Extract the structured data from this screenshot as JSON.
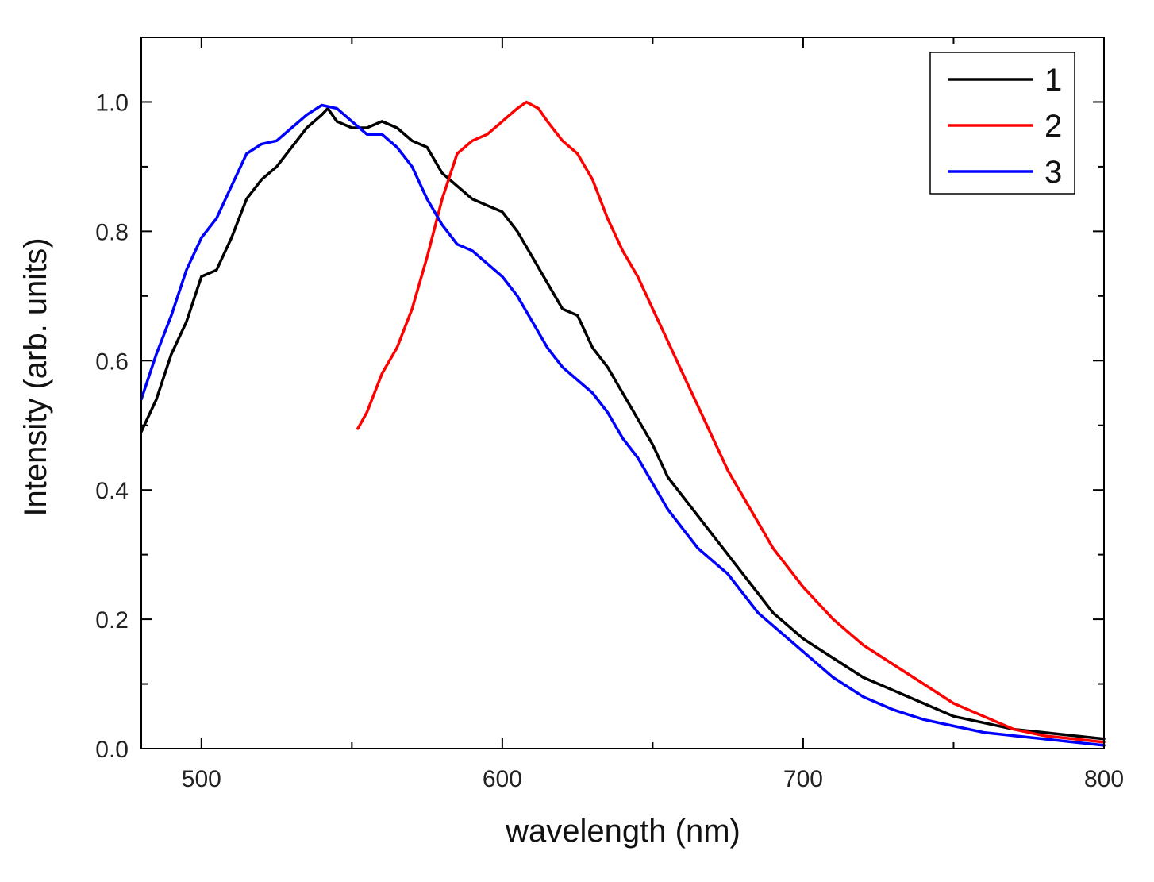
{
  "chart_data": {
    "type": "line",
    "xlabel": "wavelength (nm)",
    "ylabel": "Intensity (arb. units)",
    "xlim": [
      480,
      800
    ],
    "ylim": [
      0,
      1.1
    ],
    "x_ticks": [
      500,
      600,
      700,
      800
    ],
    "x_tick_labels": [
      "500",
      "600",
      "700",
      "800"
    ],
    "y_ticks": [
      0,
      0.2,
      0.4,
      0.6,
      0.8,
      1.0
    ],
    "y_tick_labels": [
      "0.0",
      "0.2",
      "0.4",
      "0.6",
      "0.8",
      "1.0"
    ],
    "grid": false,
    "legend_position": "top-right",
    "series": [
      {
        "name": "1",
        "color": "#000000",
        "x": [
          480,
          485,
          490,
          495,
          500,
          505,
          510,
          515,
          520,
          525,
          530,
          535,
          540,
          542,
          545,
          550,
          555,
          560,
          565,
          570,
          575,
          580,
          585,
          590,
          595,
          600,
          605,
          610,
          615,
          620,
          625,
          630,
          635,
          640,
          645,
          650,
          655,
          660,
          665,
          670,
          675,
          680,
          685,
          690,
          695,
          700,
          710,
          720,
          730,
          740,
          750,
          760,
          770,
          780,
          790,
          800
        ],
        "y": [
          0.49,
          0.54,
          0.61,
          0.66,
          0.73,
          0.74,
          0.79,
          0.85,
          0.88,
          0.9,
          0.93,
          0.96,
          0.98,
          0.99,
          0.97,
          0.96,
          0.96,
          0.97,
          0.96,
          0.94,
          0.93,
          0.89,
          0.87,
          0.85,
          0.84,
          0.83,
          0.8,
          0.76,
          0.72,
          0.68,
          0.67,
          0.62,
          0.59,
          0.55,
          0.51,
          0.47,
          0.42,
          0.39,
          0.36,
          0.33,
          0.3,
          0.27,
          0.24,
          0.21,
          0.19,
          0.17,
          0.14,
          0.11,
          0.09,
          0.07,
          0.05,
          0.04,
          0.03,
          0.025,
          0.02,
          0.015
        ]
      },
      {
        "name": "2",
        "color": "#ff0000",
        "x": [
          552,
          555,
          560,
          565,
          570,
          575,
          580,
          585,
          590,
          595,
          600,
          605,
          608,
          612,
          615,
          620,
          625,
          630,
          635,
          640,
          645,
          650,
          655,
          660,
          665,
          670,
          675,
          680,
          685,
          690,
          695,
          700,
          710,
          720,
          730,
          740,
          750,
          760,
          770,
          780,
          790,
          800
        ],
        "y": [
          0.495,
          0.52,
          0.58,
          0.62,
          0.68,
          0.76,
          0.85,
          0.92,
          0.94,
          0.95,
          0.97,
          0.99,
          1.0,
          0.99,
          0.97,
          0.94,
          0.92,
          0.88,
          0.82,
          0.77,
          0.73,
          0.68,
          0.63,
          0.58,
          0.53,
          0.48,
          0.43,
          0.39,
          0.35,
          0.31,
          0.28,
          0.25,
          0.2,
          0.16,
          0.13,
          0.1,
          0.07,
          0.05,
          0.03,
          0.02,
          0.015,
          0.01
        ]
      },
      {
        "name": "3",
        "color": "#0000ff",
        "x": [
          480,
          485,
          490,
          495,
          500,
          505,
          510,
          515,
          520,
          525,
          530,
          535,
          540,
          545,
          550,
          555,
          560,
          565,
          570,
          575,
          580,
          585,
          590,
          595,
          600,
          605,
          610,
          615,
          620,
          625,
          630,
          635,
          640,
          645,
          650,
          655,
          660,
          665,
          670,
          675,
          680,
          685,
          690,
          695,
          700,
          710,
          720,
          730,
          740,
          750,
          760,
          770,
          780,
          790,
          800
        ],
        "y": [
          0.54,
          0.61,
          0.67,
          0.74,
          0.79,
          0.82,
          0.87,
          0.92,
          0.935,
          0.94,
          0.96,
          0.98,
          0.995,
          0.99,
          0.97,
          0.95,
          0.95,
          0.93,
          0.9,
          0.85,
          0.81,
          0.78,
          0.77,
          0.75,
          0.73,
          0.7,
          0.66,
          0.62,
          0.59,
          0.57,
          0.55,
          0.52,
          0.48,
          0.45,
          0.41,
          0.37,
          0.34,
          0.31,
          0.29,
          0.27,
          0.24,
          0.21,
          0.19,
          0.17,
          0.15,
          0.11,
          0.08,
          0.06,
          0.045,
          0.035,
          0.025,
          0.02,
          0.015,
          0.01,
          0.005
        ]
      }
    ]
  }
}
